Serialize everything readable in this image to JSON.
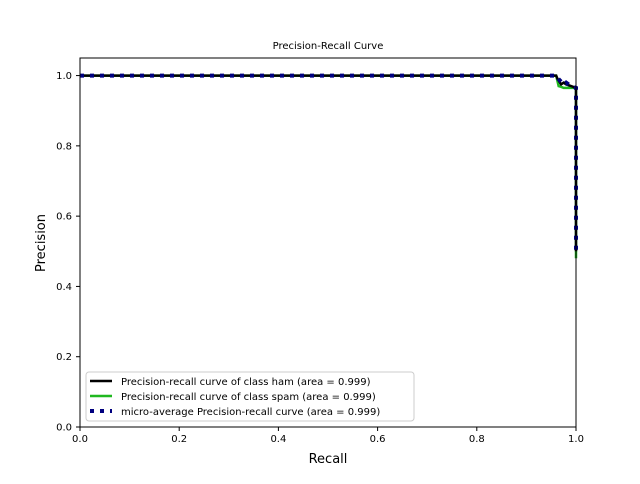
{
  "chart_data": {
    "type": "line",
    "title": "Precision-Recall Curve",
    "xlabel": "Recall",
    "ylabel": "Precision",
    "xlim": [
      0.0,
      1.0
    ],
    "ylim": [
      0.0,
      1.05
    ],
    "xticks": [
      0.0,
      0.2,
      0.4,
      0.6,
      0.8,
      1.0
    ],
    "xtick_labels": [
      "0.0",
      "0.2",
      "0.4",
      "0.6",
      "0.8",
      "1.0"
    ],
    "yticks": [
      0.0,
      0.2,
      0.4,
      0.6,
      0.8,
      1.0
    ],
    "ytick_labels": [
      "0.0",
      "0.2",
      "0.4",
      "0.6",
      "0.8",
      "1.0"
    ],
    "grid": false,
    "legend_position": "lower-left",
    "series": [
      {
        "name": "Precision-recall curve of class ham (area = 0.999)",
        "color": "#000000",
        "style": "solid",
        "x": [
          0.0,
          0.96,
          0.963,
          0.97,
          0.975,
          0.98,
          0.99,
          1.0,
          1.0
        ],
        "y": [
          1.0,
          1.0,
          0.99,
          0.975,
          0.98,
          0.975,
          0.97,
          0.965,
          0.5
        ]
      },
      {
        "name": "Precision-recall curve of class spam (area = 0.999)",
        "color": "#1fb81f",
        "style": "solid",
        "x": [
          0.0,
          0.96,
          0.965,
          0.97,
          0.975,
          1.0,
          1.0
        ],
        "y": [
          1.0,
          1.0,
          0.97,
          0.968,
          0.965,
          0.965,
          0.48
        ]
      },
      {
        "name": "micro-average Precision-recall curve (area = 0.999)",
        "color": "#00007f",
        "style": "dotted",
        "x": [
          0.0,
          0.96,
          0.965,
          0.975,
          0.98,
          0.99,
          1.0,
          1.0
        ],
        "y": [
          1.0,
          1.0,
          0.99,
          0.975,
          0.98,
          0.97,
          0.965,
          0.5
        ]
      }
    ]
  }
}
